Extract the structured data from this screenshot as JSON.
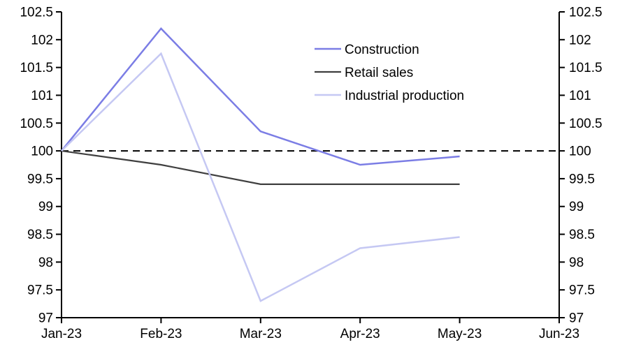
{
  "chart_data": {
    "type": "line",
    "title": "",
    "xlabel": "",
    "ylabel": "",
    "x_categories": [
      "Jan-23",
      "Feb-23",
      "Mar-23",
      "Apr-23",
      "May-23",
      "Jun-23"
    ],
    "series": [
      {
        "name": "Construction",
        "color": "#7b7de5",
        "stroke_width": 2.5,
        "values": [
          100.0,
          102.2,
          100.35,
          99.75,
          99.9
        ]
      },
      {
        "name": "Retail sales",
        "color": "#3f3f3f",
        "stroke_width": 2.2,
        "values": [
          100.0,
          99.75,
          99.4,
          99.4,
          99.4
        ]
      },
      {
        "name": "Industrial production",
        "color": "#c5c8f3",
        "stroke_width": 2.5,
        "values": [
          100.0,
          101.75,
          97.3,
          98.25,
          98.45
        ]
      }
    ],
    "y_ticks": [
      97.0,
      97.5,
      98.0,
      98.5,
      99.0,
      99.5,
      100.0,
      100.5,
      101.0,
      101.5,
      102.0,
      102.5
    ],
    "ylim": [
      97.0,
      102.5
    ],
    "dual_y_axis": true,
    "grid": false,
    "reference_line": {
      "value": 100.0,
      "style": "dashed",
      "color": "#000000"
    },
    "legend": {
      "position": "top-center-right",
      "entries": [
        "Construction",
        "Retail sales",
        "Industrial production"
      ]
    },
    "axis_color": "#000000",
    "background_color": "#ffffff"
  }
}
